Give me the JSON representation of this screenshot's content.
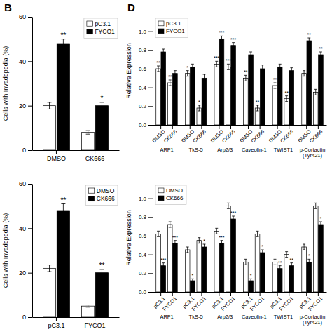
{
  "chart_data": [
    {
      "type": "bar",
      "title": "B",
      "ylabel": "Cells with Invadopodia (%)",
      "categories": [
        "DMSO",
        "CK666"
      ],
      "series": [
        {
          "name": "pC3.1",
          "color": "white",
          "values": [
            20,
            8
          ],
          "errors": [
            1.5,
            0.8
          ],
          "significance": [
            null,
            null
          ]
        },
        {
          "name": "FYCO1",
          "color": "black",
          "values": [
            48,
            20
          ],
          "errors": [
            2.0,
            1.5
          ],
          "significance": [
            "**",
            "*"
          ]
        }
      ],
      "ylim": [
        0,
        60
      ],
      "yticks": [
        0,
        20,
        40,
        60
      ],
      "legend": "upper right"
    },
    {
      "type": "bar",
      "ylabel": "Cells with Invadopodia (%)",
      "categories": [
        "pC3.1",
        "FYCO1"
      ],
      "series": [
        {
          "name": "DMSO",
          "color": "white",
          "values": [
            22,
            5
          ],
          "errors": [
            1.5,
            0.5
          ],
          "significance": [
            null,
            null
          ]
        },
        {
          "name": "CK666",
          "color": "black",
          "values": [
            48,
            20
          ],
          "errors": [
            3.0,
            1.5
          ],
          "significance": [
            "**",
            "**"
          ]
        }
      ],
      "ylim": [
        0,
        60
      ],
      "yticks": [
        0,
        20,
        40,
        60
      ],
      "legend": "upper right"
    },
    {
      "type": "bar",
      "title": "D",
      "ylabel": "Relative Expression",
      "category_groups": [
        "ARF1",
        "TkS-5",
        "Arp2/3",
        "Caveolin-1",
        "TWIST1",
        "p-Cortactin\n(Tyr421)"
      ],
      "categories": [
        "DMSO",
        "CK666",
        "DMSO",
        "CK666",
        "DMSO",
        "CK666",
        "DMSO",
        "CK666",
        "DMSO",
        "CK666",
        "DMSO",
        "CK666"
      ],
      "series": [
        {
          "name": "pC3.1",
          "color": "white",
          "values": [
            0.6,
            0.45,
            0.55,
            0.18,
            0.65,
            0.62,
            0.5,
            0.18,
            0.42,
            0.28,
            0.55,
            0.35
          ],
          "errors": [
            0.03,
            0.03,
            0.03,
            0.03,
            0.03,
            0.03,
            0.03,
            0.03,
            0.03,
            0.03,
            0.03,
            0.03
          ],
          "significance": [
            "**",
            "**",
            "*",
            "*",
            "***",
            "***",
            "**",
            "**",
            "**",
            "**",
            null,
            null
          ]
        },
        {
          "name": "FYCO1",
          "color": "black",
          "values": [
            0.78,
            0.55,
            0.62,
            0.5,
            0.92,
            0.85,
            0.75,
            0.6,
            0.62,
            0.58,
            0.9,
            0.75
          ],
          "errors": [
            0.03,
            0.03,
            0.03,
            0.04,
            0.03,
            0.03,
            0.03,
            0.04,
            0.03,
            0.03,
            0.03,
            0.03
          ],
          "significance": [
            null,
            null,
            null,
            null,
            "***",
            "***",
            null,
            null,
            null,
            null,
            "**",
            "**"
          ]
        }
      ],
      "ylim": [
        0,
        1.155
      ],
      "yticks": [
        {
          "value": 0,
          "label": "0.0"
        },
        0.2,
        0.4,
        0.6,
        0.8,
        {
          "value": 1,
          "label": "1.0"
        }
      ],
      "legend": "upper left"
    },
    {
      "type": "bar",
      "ylabel": "Relative Expression",
      "category_groups": [
        "ARF1",
        "TkS-5",
        "Arp2/3",
        "Caveolin-1",
        "TWIST1",
        "p-Cortactin\n(Tyr421)"
      ],
      "categories": [
        "pC3.1",
        "FYCO1",
        "pC3.1",
        "FYCO1",
        "pC3.1",
        "FYCO1",
        "pC3.1",
        "FYCO1",
        "pC3.1",
        "FYCO1",
        "pC3.1",
        "FYCO1"
      ],
      "series": [
        {
          "name": "DMSO",
          "color": "white",
          "values": [
            0.62,
            0.72,
            0.45,
            0.55,
            0.65,
            0.92,
            0.32,
            0.62,
            0.32,
            0.4,
            0.48,
            0.92
          ],
          "errors": [
            0.03,
            0.03,
            0.03,
            0.03,
            0.03,
            0.03,
            0.03,
            0.03,
            0.03,
            0.03,
            0.03,
            0.03
          ],
          "significance": [
            null,
            null,
            null,
            null,
            null,
            null,
            null,
            null,
            null,
            null,
            null,
            null
          ]
        },
        {
          "name": "CK666",
          "color": "black",
          "values": [
            0.28,
            0.52,
            0.12,
            0.48,
            0.52,
            0.78,
            0.12,
            0.42,
            0.25,
            0.28,
            0.32,
            0.72
          ],
          "errors": [
            0.03,
            0.03,
            0.02,
            0.03,
            0.03,
            0.03,
            0.02,
            0.03,
            0.03,
            0.03,
            0.03,
            0.03
          ],
          "significance": [
            "***",
            "***",
            "*",
            "*",
            "***",
            "***",
            "*",
            "*",
            "**",
            "**",
            "*",
            "*"
          ]
        }
      ],
      "ylim": [
        0,
        1.155
      ],
      "yticks": [
        {
          "value": 0,
          "label": "0.0"
        },
        0.2,
        0.4,
        0.6,
        0.8,
        {
          "value": 1,
          "label": "1.0"
        }
      ],
      "legend": "upper left"
    }
  ]
}
